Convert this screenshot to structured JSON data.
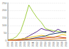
{
  "chart_data": {
    "type": "line",
    "categories": [
      "2005",
      "2006",
      "2007",
      "2008",
      "2009",
      "2010",
      "2011",
      "2012",
      "2013",
      "2014",
      "2015",
      "2016",
      "2017",
      "2018",
      "2019"
    ],
    "series": [
      {
        "color": "#9ccc3c",
        "values": [
          5,
          10,
          25,
          60,
          140,
          235,
          190,
          150,
          120,
          80,
          70,
          65,
          60,
          55,
          50
        ]
      },
      {
        "color": "#5b2c8a",
        "values": [
          2,
          3,
          5,
          8,
          15,
          30,
          45,
          60,
          80,
          70,
          65,
          55,
          75,
          60,
          55
        ]
      },
      {
        "color": "#f0c419",
        "values": [
          3,
          4,
          6,
          10,
          15,
          20,
          25,
          30,
          35,
          30,
          25,
          20,
          30,
          40,
          35
        ]
      },
      {
        "color": "#1f3a68",
        "values": [
          1,
          2,
          3,
          5,
          8,
          10,
          15,
          20,
          25,
          30,
          40,
          45,
          50,
          55,
          60
        ]
      },
      {
        "color": "#c0392b",
        "values": [
          1,
          1,
          2,
          3,
          5,
          8,
          10,
          12,
          15,
          18,
          20,
          22,
          25,
          20,
          18
        ]
      },
      {
        "color": "#e67e22",
        "values": [
          2,
          3,
          3,
          5,
          6,
          8,
          10,
          12,
          10,
          9,
          8,
          10,
          12,
          14,
          12
        ]
      }
    ],
    "ylim": [
      0,
      250
    ],
    "yticks": [
      0,
      50,
      100,
      150,
      200,
      250
    ],
    "grid": true
  }
}
